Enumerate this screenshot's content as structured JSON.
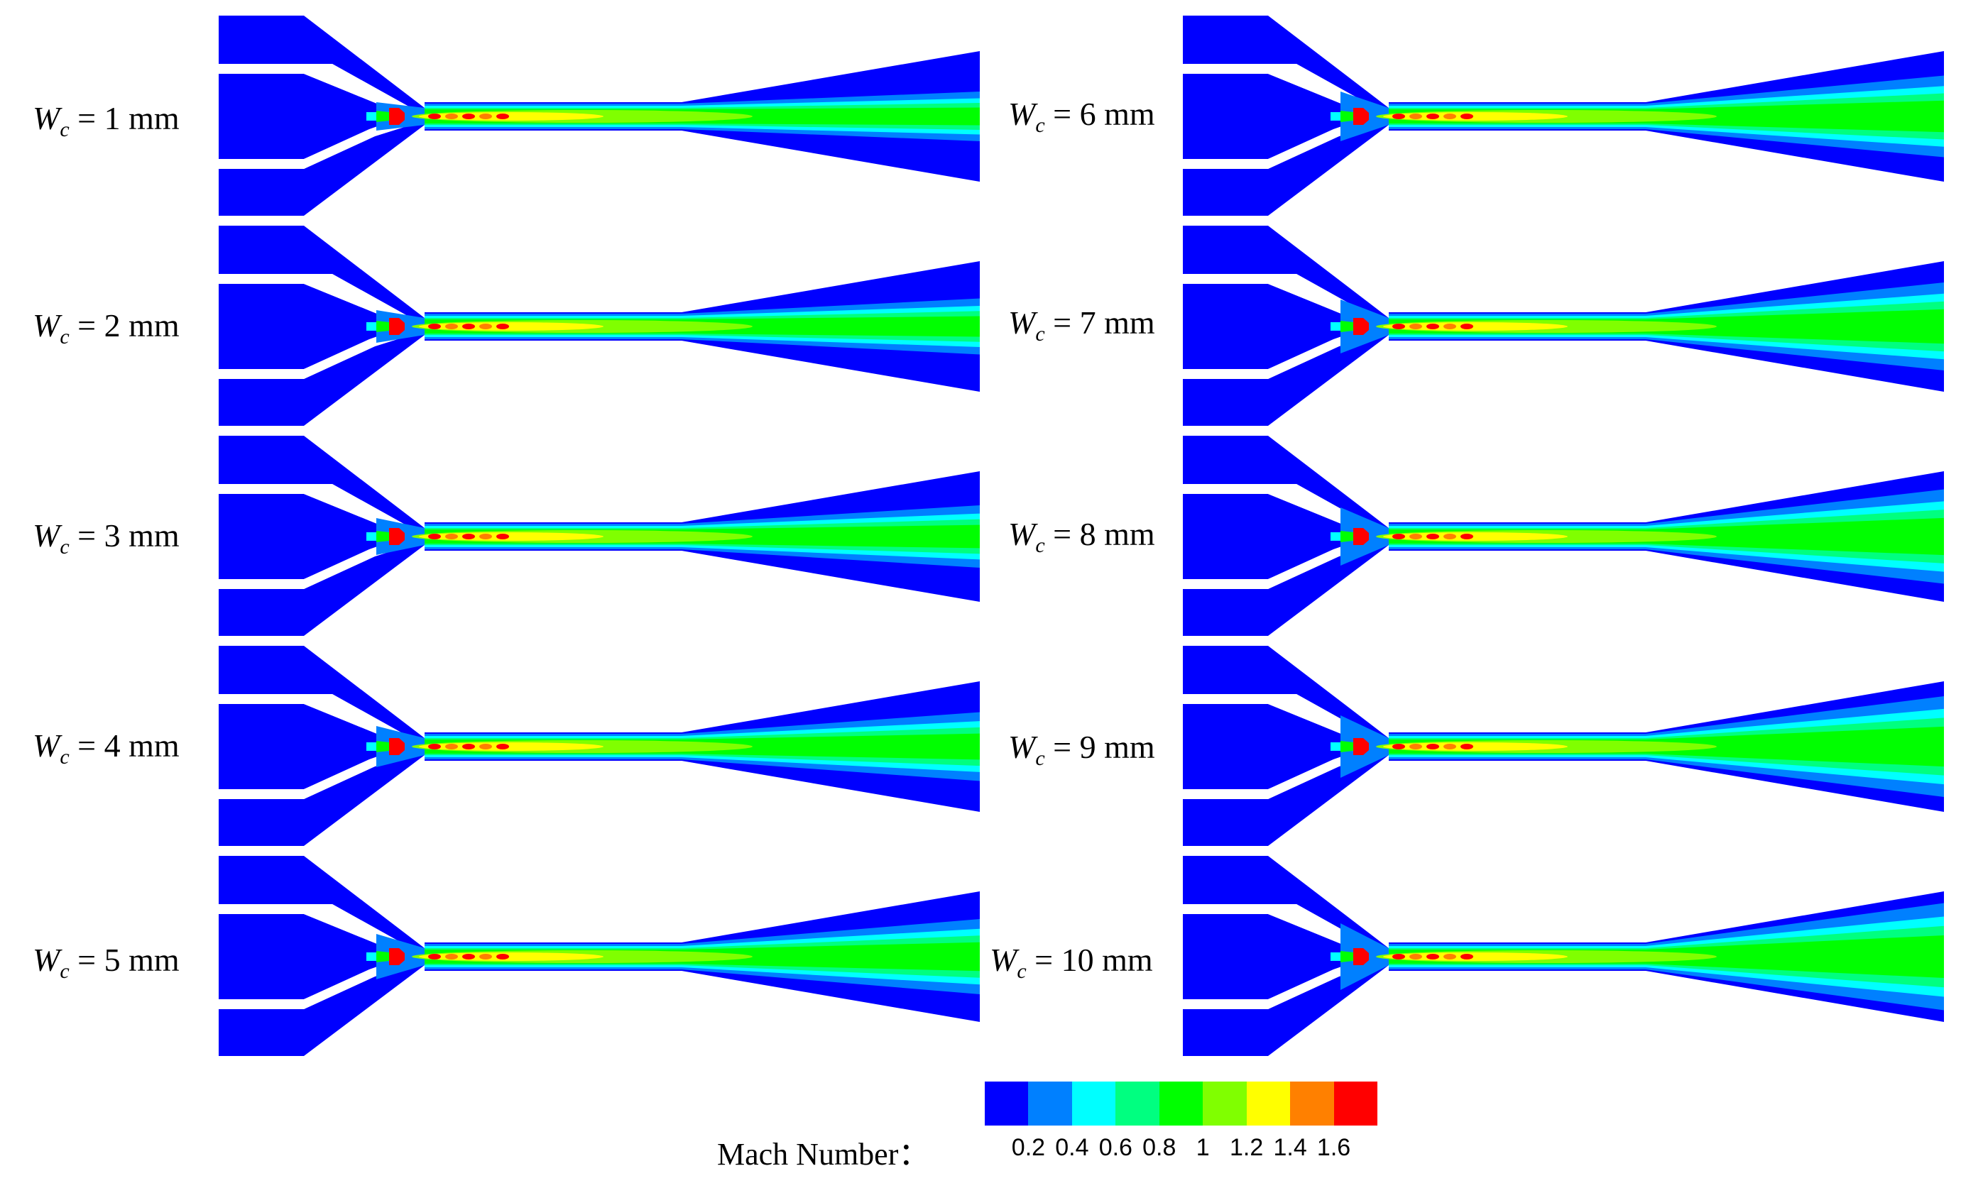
{
  "cases": [
    {
      "symbol": "W",
      "subscript": "c",
      "value_text": " = 1 mm"
    },
    {
      "symbol": "W",
      "subscript": "c",
      "value_text": " = 2 mm"
    },
    {
      "symbol": "W",
      "subscript": "c",
      "value_text": " = 3 mm"
    },
    {
      "symbol": "W",
      "subscript": "c",
      "value_text": " = 4 mm"
    },
    {
      "symbol": "W",
      "subscript": "c",
      "value_text": " = 5 mm"
    },
    {
      "symbol": "W",
      "subscript": "c",
      "value_text": " = 6 mm"
    },
    {
      "symbol": "W",
      "subscript": "c",
      "value_text": " = 7 mm"
    },
    {
      "symbol": "W",
      "subscript": "c",
      "value_text": " = 8 mm"
    },
    {
      "symbol": "W",
      "subscript": "c",
      "value_text": " = 9 mm"
    },
    {
      "symbol": "W",
      "subscript": "c",
      "value_text": " = 10 mm"
    }
  ],
  "legend": {
    "title": "Mach Number：",
    "ticks": [
      "0.2",
      "0.4",
      "0.6",
      "0.8",
      "1",
      "1.2",
      "1.4",
      "1.6"
    ],
    "colors": [
      "#0000ff",
      "#0080ff",
      "#00ffff",
      "#00ff80",
      "#00ff00",
      "#80ff00",
      "#ffff00",
      "#ff8000",
      "#ff0000"
    ]
  }
}
